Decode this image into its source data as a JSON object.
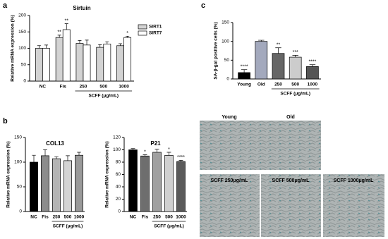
{
  "figure": {
    "panel_labels": [
      "a",
      "b",
      "c"
    ],
    "images": [
      "Young",
      "Old",
      "SCFF 250μg/mL",
      "SCFF 500μg/mL",
      "SCFF 1000μg/mL"
    ]
  },
  "chart_data": [
    {
      "type": "bar",
      "title": "Sirtuin",
      "ylabel": "Relative mRNA expression (%)",
      "categories": [
        "NC",
        "Fis",
        "250",
        "500",
        "1000"
      ],
      "group_label": "SCFF (μg/mL)",
      "group": [
        2,
        4
      ],
      "series": [
        {
          "name": "SIRT1",
          "color": "#d3d3d3",
          "values": [
            100,
            133,
            115,
            103,
            108
          ],
          "errors": [
            8,
            7,
            9,
            8,
            6
          ],
          "annotations": [
            null,
            "**",
            null,
            null,
            null
          ]
        },
        {
          "name": "SIRT7",
          "color": "#ffffff",
          "values": [
            100,
            157,
            110,
            113,
            133
          ],
          "errors": [
            10,
            18,
            15,
            7,
            4
          ],
          "annotations": [
            null,
            "**",
            null,
            null,
            "*"
          ]
        }
      ],
      "ylim": [
        0,
        200
      ],
      "yticks": [
        0,
        50,
        100,
        150,
        200
      ]
    },
    {
      "type": "bar",
      "title": "COL13",
      "ylabel": "Relative mRNA expression (%)",
      "categories": [
        "NC",
        "Fis",
        "250",
        "500",
        "1000"
      ],
      "group_label": "SCFF (μg/mL)",
      "group": [
        2,
        4
      ],
      "series": [
        {
          "colors": [
            "#000000",
            "#8c8c8c",
            "#b4b4b4",
            "#d4d4d4",
            "#9a9a9a"
          ],
          "values": [
            100,
            113,
            107,
            103,
            114
          ],
          "errors": [
            14,
            12,
            4,
            10,
            6
          ],
          "annotations": [
            null,
            null,
            null,
            null,
            null
          ]
        }
      ],
      "ylim": [
        0,
        150
      ],
      "yticks": [
        0,
        50,
        100,
        150
      ]
    },
    {
      "type": "bar",
      "title": "P21",
      "ylabel": "Relative mRNA expression (%)",
      "categories": [
        "NC",
        "Fis",
        "250",
        "500",
        "1000"
      ],
      "group_label": "SCFF (μg/mL)",
      "group": [
        2,
        4
      ],
      "series": [
        {
          "colors": [
            "#000000",
            "#6e6e6e",
            "#a0a0a0",
            "#d0d0d0",
            "#5a5a5a"
          ],
          "values": [
            100,
            90,
            96,
            91,
            81
          ],
          "errors": [
            2,
            2,
            5,
            5,
            2
          ],
          "annotations": [
            null,
            "*",
            null,
            "*",
            "****"
          ]
        }
      ],
      "ylim": [
        0,
        120
      ],
      "yticks": [
        0,
        20,
        40,
        60,
        80,
        100,
        120
      ]
    },
    {
      "type": "bar",
      "ylabel": "SA-β-gal positive cells (%)",
      "categories": [
        "Young",
        "Old",
        "250",
        "500",
        "1000"
      ],
      "group_label": "SCFF (μg/mL)",
      "group": [
        2,
        4
      ],
      "series": [
        {
          "colors": [
            "#000000",
            "#a3a9bd",
            "#666666",
            "#cccccc",
            "#555555"
          ],
          "values": [
            17,
            100,
            68,
            58,
            33
          ],
          "errors": [
            8,
            3,
            15,
            5,
            5
          ],
          "annotations": [
            "****",
            null,
            "**",
            "***",
            "****"
          ]
        }
      ],
      "ylim": [
        0,
        150
      ],
      "yticks": [
        0,
        50,
        100,
        150
      ]
    }
  ]
}
